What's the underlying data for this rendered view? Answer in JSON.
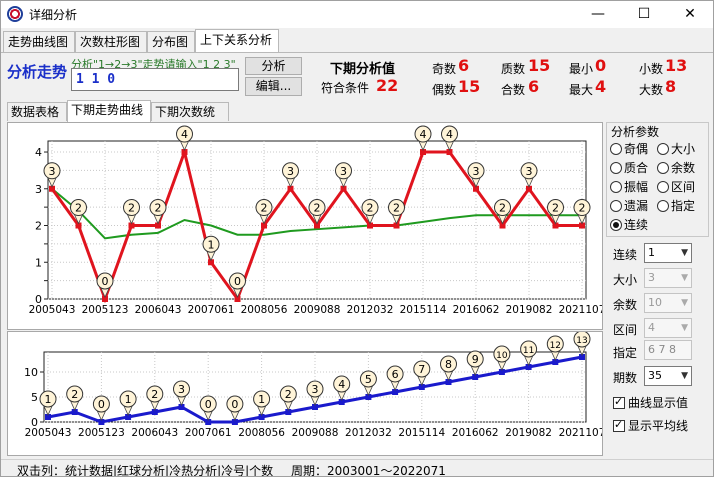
{
  "window": {
    "title": "详细分析",
    "min_glyph": "—",
    "max_glyph": "☐",
    "close_glyph": "✕"
  },
  "top_tabs": [
    "走势曲线图",
    "次数柱形图",
    "分布图",
    "上下关系分析"
  ],
  "analysis": {
    "label": "分析走势",
    "hint": "分析\"1→2→3\"走势请输入\"1 2 3\"",
    "input_value": "1 1 0",
    "analyze_label": "分析",
    "edit_label": "编辑..."
  },
  "next_period": {
    "label": "下期分析值",
    "match_label": "符合条件",
    "match_value": "22",
    "stats": [
      {
        "label": "奇数",
        "value": "6"
      },
      {
        "label": "质数",
        "value": "15"
      },
      {
        "label": "最小",
        "value": "0"
      },
      {
        "label": "小数",
        "value": "13"
      },
      {
        "label": "偶数",
        "value": "15"
      },
      {
        "label": "合数",
        "value": "6"
      },
      {
        "label": "最大",
        "value": "4"
      },
      {
        "label": "大数",
        "value": "8"
      }
    ]
  },
  "sub_tabs": [
    "数据表格",
    "下期走势曲线",
    "下期次数统计"
  ],
  "chart_data": [
    {
      "type": "line",
      "x_tick_labels": [
        "2005043",
        "2005123",
        "2006043",
        "2007061",
        "2008056",
        "2009088",
        "2012032",
        "2015114",
        "2016062",
        "2019082",
        "2021107"
      ],
      "y_ticks": [
        0,
        0.5,
        1,
        1.5,
        2,
        2.5,
        3,
        3.5,
        4
      ],
      "y_tick_labels": [
        "0",
        "",
        "1",
        "",
        "2",
        "",
        "3",
        "",
        "4"
      ],
      "ylim": [
        0,
        4.3
      ],
      "grid": true,
      "series": [
        {
          "color": "#e0141e",
          "values": [
            3,
            2,
            0,
            2,
            2,
            4,
            1,
            0,
            2,
            3,
            2,
            3,
            2,
            2,
            4,
            4,
            3,
            2,
            3,
            2,
            2
          ],
          "labeled": true
        },
        {
          "color": "#1f9a1f",
          "values": [
            3,
            2.4,
            1.65,
            1.75,
            1.8,
            2.15,
            2.0,
            1.75,
            1.75,
            1.85,
            1.9,
            1.95,
            2.0,
            2.0,
            2.1,
            2.2,
            2.28,
            2.28,
            2.28,
            2.28,
            2.28
          ],
          "labeled": false
        }
      ]
    },
    {
      "type": "line",
      "x_tick_labels": [
        "2005043",
        "2005123",
        "2006043",
        "2007061",
        "2008056",
        "2009088",
        "2012032",
        "2015114",
        "2016062",
        "2019082",
        "2021107"
      ],
      "y_ticks": [
        0,
        5,
        10
      ],
      "y_tick_labels": [
        "0",
        "5",
        "10"
      ],
      "ylim": [
        0,
        14
      ],
      "grid": true,
      "series": [
        {
          "color": "#1a1acc",
          "values": [
            1,
            2,
            0,
            1,
            2,
            3,
            0,
            0,
            1,
            2,
            3,
            4,
            5,
            6,
            7,
            8,
            9,
            10,
            11,
            12,
            13
          ],
          "labeled": true
        }
      ]
    }
  ],
  "params": {
    "title": "分析参数",
    "options": [
      "奇偶",
      "大小",
      "质合",
      "余数",
      "振幅",
      "区间",
      "遗漏",
      "指定",
      "连续"
    ],
    "selected": "连续"
  },
  "controls": {
    "lianxu": {
      "label": "连续",
      "value": "1"
    },
    "daxiao": {
      "label": "大小",
      "value": "3"
    },
    "yushu": {
      "label": "余数",
      "value": "10"
    },
    "qujian": {
      "label": "区间",
      "value": "4"
    },
    "zhiding": {
      "label": "指定",
      "value": "6 7 8"
    },
    "qishu": {
      "label": "期数",
      "value": "35"
    },
    "show_values": "曲线显示值",
    "show_avg": "显示平均线"
  },
  "status": {
    "left": "双击列：统计数据|红球分析|冷热分析|冷号|个数",
    "period": "周期：2003001～2022071"
  }
}
